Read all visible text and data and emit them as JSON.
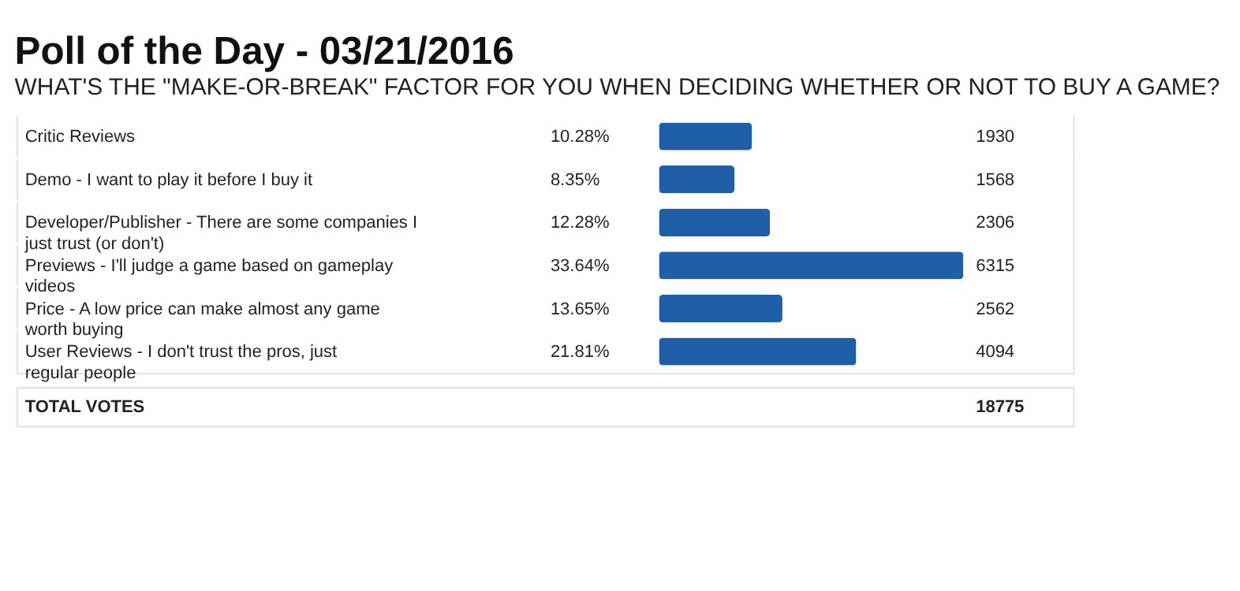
{
  "chart_data": {
    "type": "bar",
    "orientation": "horizontal",
    "title": "Poll of the Day - 03/21/2016",
    "subtitle": "WHAT'S THE \"MAKE-OR-BREAK\" FACTOR FOR YOU WHEN DECIDING WHETHER OR NOT TO BUY A GAME?",
    "categories": [
      "Critic Reviews",
      "Demo - I want to play it before I buy it",
      "Developer/Publisher - There are some companies I just trust (or don't)",
      "Previews - I'll judge a game based on gameplay videos",
      "Price - A low price can make almost any game worth buying",
      "User Reviews - I don't trust the pros, just regular people"
    ],
    "values": [
      1930,
      1568,
      2306,
      6315,
      2562,
      4094
    ],
    "color": "#1f5fa8",
    "data_labels": true,
    "annotations": [
      "10.28%",
      "8.35%",
      "12.28%",
      "33.64%",
      "13.65%",
      "21.81%",
      "TOTAL VOTES",
      "18775"
    ]
  }
}
